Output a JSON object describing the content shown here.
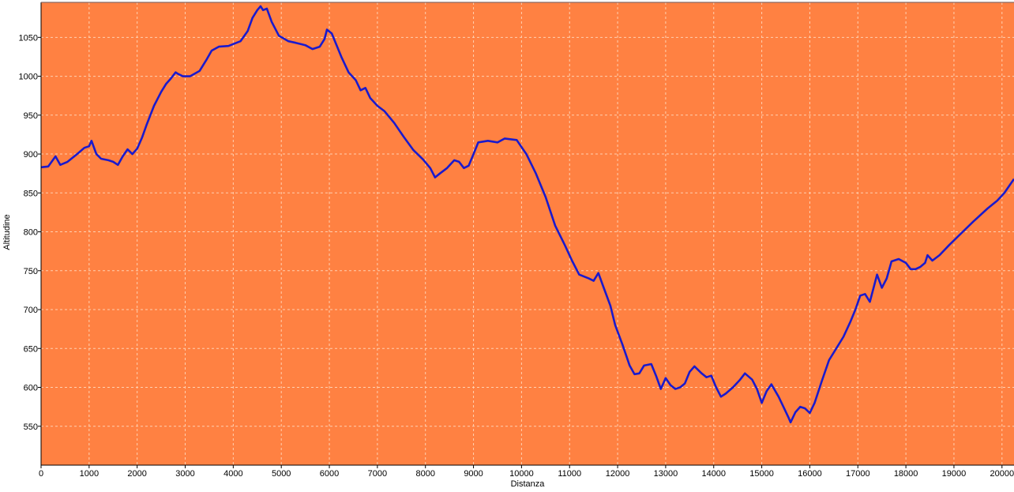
{
  "chart_data": {
    "type": "line",
    "title": "",
    "xlabel": "Distanza",
    "ylabel": "Altitudine",
    "xlim": [
      0,
      20250
    ],
    "ylim": [
      500,
      1095
    ],
    "grid": true,
    "x_ticks": [
      0,
      1000,
      2000,
      3000,
      4000,
      5000,
      6000,
      7000,
      8000,
      9000,
      10000,
      11000,
      12000,
      13000,
      14000,
      15000,
      16000,
      17000,
      18000,
      19000,
      20000
    ],
    "y_ticks": [
      550,
      600,
      650,
      700,
      750,
      800,
      850,
      900,
      950,
      1000,
      1050
    ],
    "reference_line": {
      "value": 1095
    },
    "colors": {
      "plot_background": "#ff8142",
      "series_line": "#1a1acd",
      "reference_line": "#c42a10",
      "grid": "#ffd0b0",
      "axis": "#000000"
    },
    "series": [
      {
        "points": [
          [
            0,
            883
          ],
          [
            150,
            884
          ],
          [
            300,
            897
          ],
          [
            400,
            886
          ],
          [
            550,
            890
          ],
          [
            750,
            900
          ],
          [
            900,
            908
          ],
          [
            1000,
            910
          ],
          [
            1050,
            917
          ],
          [
            1150,
            900
          ],
          [
            1250,
            894
          ],
          [
            1400,
            892
          ],
          [
            1500,
            890
          ],
          [
            1600,
            886
          ],
          [
            1700,
            897
          ],
          [
            1800,
            906
          ],
          [
            1900,
            900
          ],
          [
            2000,
            907
          ],
          [
            2100,
            921
          ],
          [
            2200,
            938
          ],
          [
            2350,
            962
          ],
          [
            2500,
            980
          ],
          [
            2600,
            990
          ],
          [
            2700,
            997
          ],
          [
            2800,
            1005
          ],
          [
            2850,
            1003
          ],
          [
            2950,
            1000
          ],
          [
            3100,
            1000
          ],
          [
            3300,
            1007
          ],
          [
            3450,
            1022
          ],
          [
            3550,
            1033
          ],
          [
            3700,
            1038
          ],
          [
            3900,
            1039
          ],
          [
            4150,
            1045
          ],
          [
            4300,
            1058
          ],
          [
            4400,
            1075
          ],
          [
            4500,
            1085
          ],
          [
            4570,
            1090
          ],
          [
            4620,
            1085
          ],
          [
            4700,
            1087
          ],
          [
            4800,
            1070
          ],
          [
            4950,
            1052
          ],
          [
            5150,
            1045
          ],
          [
            5300,
            1043
          ],
          [
            5500,
            1040
          ],
          [
            5650,
            1035
          ],
          [
            5800,
            1038
          ],
          [
            5900,
            1048
          ],
          [
            5950,
            1060
          ],
          [
            6050,
            1055
          ],
          [
            6150,
            1040
          ],
          [
            6250,
            1025
          ],
          [
            6400,
            1005
          ],
          [
            6550,
            995
          ],
          [
            6650,
            982
          ],
          [
            6750,
            985
          ],
          [
            6850,
            972
          ],
          [
            7000,
            962
          ],
          [
            7150,
            955
          ],
          [
            7350,
            940
          ],
          [
            7550,
            922
          ],
          [
            7750,
            905
          ],
          [
            7950,
            893
          ],
          [
            8100,
            882
          ],
          [
            8200,
            870
          ],
          [
            8300,
            875
          ],
          [
            8450,
            882
          ],
          [
            8600,
            892
          ],
          [
            8700,
            890
          ],
          [
            8800,
            882
          ],
          [
            8900,
            885
          ],
          [
            9000,
            900
          ],
          [
            9100,
            915
          ],
          [
            9300,
            917
          ],
          [
            9500,
            915
          ],
          [
            9650,
            920
          ],
          [
            9900,
            918
          ],
          [
            10100,
            900
          ],
          [
            10300,
            875
          ],
          [
            10500,
            845
          ],
          [
            10700,
            808
          ],
          [
            10900,
            783
          ],
          [
            11050,
            763
          ],
          [
            11200,
            745
          ],
          [
            11400,
            740
          ],
          [
            11500,
            737
          ],
          [
            11600,
            747
          ],
          [
            11700,
            730
          ],
          [
            11850,
            705
          ],
          [
            11950,
            680
          ],
          [
            12100,
            655
          ],
          [
            12250,
            628
          ],
          [
            12350,
            617
          ],
          [
            12450,
            618
          ],
          [
            12550,
            628
          ],
          [
            12700,
            630
          ],
          [
            12800,
            615
          ],
          [
            12900,
            598
          ],
          [
            13000,
            612
          ],
          [
            13100,
            603
          ],
          [
            13200,
            598
          ],
          [
            13300,
            600
          ],
          [
            13400,
            605
          ],
          [
            13500,
            620
          ],
          [
            13600,
            627
          ],
          [
            13750,
            618
          ],
          [
            13850,
            613
          ],
          [
            13950,
            615
          ],
          [
            14050,
            600
          ],
          [
            14150,
            588
          ],
          [
            14250,
            592
          ],
          [
            14400,
            600
          ],
          [
            14550,
            610
          ],
          [
            14650,
            618
          ],
          [
            14800,
            610
          ],
          [
            14900,
            598
          ],
          [
            15000,
            580
          ],
          [
            15100,
            595
          ],
          [
            15200,
            604
          ],
          [
            15350,
            588
          ],
          [
            15450,
            575
          ],
          [
            15550,
            562
          ],
          [
            15600,
            555
          ],
          [
            15700,
            568
          ],
          [
            15800,
            575
          ],
          [
            15900,
            573
          ],
          [
            16000,
            567
          ],
          [
            16100,
            580
          ],
          [
            16250,
            608
          ],
          [
            16400,
            635
          ],
          [
            16550,
            650
          ],
          [
            16700,
            665
          ],
          [
            16850,
            685
          ],
          [
            16950,
            700
          ],
          [
            17050,
            718
          ],
          [
            17150,
            720
          ],
          [
            17250,
            710
          ],
          [
            17400,
            745
          ],
          [
            17500,
            728
          ],
          [
            17600,
            740
          ],
          [
            17700,
            762
          ],
          [
            17850,
            765
          ],
          [
            18000,
            760
          ],
          [
            18100,
            752
          ],
          [
            18200,
            752
          ],
          [
            18300,
            755
          ],
          [
            18400,
            760
          ],
          [
            18450,
            770
          ],
          [
            18550,
            763
          ],
          [
            18700,
            770
          ],
          [
            18900,
            783
          ],
          [
            19100,
            795
          ],
          [
            19400,
            813
          ],
          [
            19700,
            830
          ],
          [
            19900,
            840
          ],
          [
            20050,
            850
          ],
          [
            20250,
            868
          ]
        ]
      }
    ]
  }
}
